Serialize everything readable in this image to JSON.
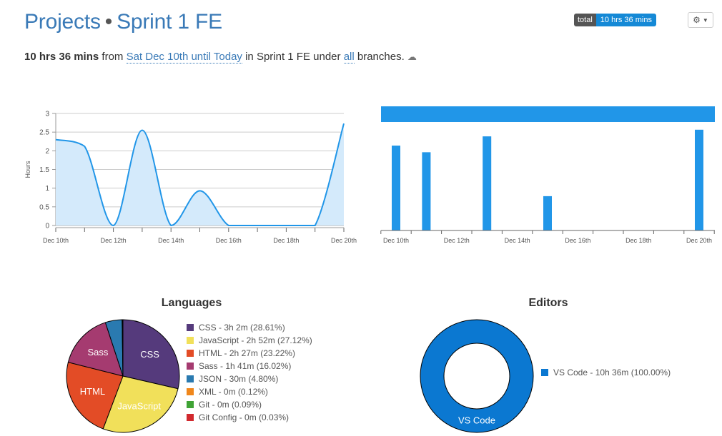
{
  "header": {
    "projects_label": "Projects",
    "separator": "•",
    "project_name": "Sprint 1 FE",
    "total_label": "total",
    "total_value": "10 hrs 36 mins"
  },
  "summary": {
    "duration": "10 hrs 36 mins",
    "from_word": "from",
    "date_range": "Sat Dec 10th until Today",
    "in_word": "in",
    "project": "Sprint 1 FE",
    "under_word": "under",
    "branches_link": "all",
    "branches_word": "branches."
  },
  "chart_data": [
    {
      "type": "area",
      "ylabel": "Hours",
      "ylim": [
        0,
        3
      ],
      "yticks": [
        "0",
        "0.5",
        "1",
        "1.5",
        "2",
        "2.5",
        "3"
      ],
      "xtick_labels": [
        "Dec 10th",
        "Dec 12th",
        "Dec 14th",
        "Dec 16th",
        "Dec 18th",
        "Dec 20th"
      ],
      "xlim": [
        "2022-12-10",
        "2022-12-20"
      ],
      "x": [
        "2022-12-10",
        "2022-12-11",
        "2022-12-12",
        "2022-12-13",
        "2022-12-14",
        "2022-12-15",
        "2022-12-16",
        "2022-12-17",
        "2022-12-18",
        "2022-12-19",
        "2022-12-20"
      ],
      "values": [
        2.3,
        2.12,
        0.0,
        2.55,
        0.0,
        0.93,
        0.0,
        0.0,
        0.0,
        0.0,
        2.73
      ],
      "color": "#2196e8",
      "fill": "#d4eafb",
      "grid": true
    },
    {
      "type": "bar",
      "xtick_labels": [
        "Dec 10th",
        "Dec 12th",
        "Dec 14th",
        "Dec 16th",
        "Dec 18th",
        "Dec 20th"
      ],
      "x": [
        "2022-12-10",
        "2022-12-11",
        "2022-12-12",
        "2022-12-13",
        "2022-12-14",
        "2022-12-15",
        "2022-12-16",
        "2022-12-17",
        "2022-12-18",
        "2022-12-19",
        "2022-12-20"
      ],
      "values": [
        2.3,
        2.12,
        0.0,
        2.55,
        0.0,
        0.93,
        0.0,
        0.0,
        0.0,
        0.0,
        2.73
      ],
      "ylim": [
        0,
        2.9
      ],
      "color": "#2196e8"
    },
    {
      "type": "pie",
      "title": "Languages",
      "slices": [
        {
          "label": "CSS",
          "legend": "CSS - 3h 2m (28.61%)",
          "value": 28.61,
          "color": "#553a7c",
          "show_label": true
        },
        {
          "label": "JavaScript",
          "legend": "JavaScript - 2h 52m (27.12%)",
          "value": 27.12,
          "color": "#f1e05a",
          "show_label": true
        },
        {
          "label": "HTML",
          "legend": "HTML - 2h 27m (23.22%)",
          "value": 23.22,
          "color": "#e34c26",
          "show_label": true
        },
        {
          "label": "Sass",
          "legend": "Sass - 1h 41m (16.02%)",
          "value": 16.02,
          "color": "#a53b70",
          "show_label": true
        },
        {
          "label": "JSON",
          "legend": "JSON - 30m (4.80%)",
          "value": 4.8,
          "color": "#2a7ab0",
          "show_label": false
        },
        {
          "label": "XML",
          "legend": "XML - 0m (0.12%)",
          "value": 0.12,
          "color": "#f0871b",
          "show_label": false
        },
        {
          "label": "Git",
          "legend": "Git - 0m (0.09%)",
          "value": 0.09,
          "color": "#3fa335",
          "show_label": false
        },
        {
          "label": "Git Config",
          "legend": "Git Config - 0m (0.03%)",
          "value": 0.03,
          "color": "#d1292e",
          "show_label": false
        }
      ]
    },
    {
      "type": "pie",
      "title": "Editors",
      "slices": [
        {
          "label": "VS Code",
          "legend": "VS Code - 10h 36m (100.00%)",
          "value": 100.0,
          "color": "#0b78d1",
          "show_label": true
        }
      ]
    }
  ]
}
